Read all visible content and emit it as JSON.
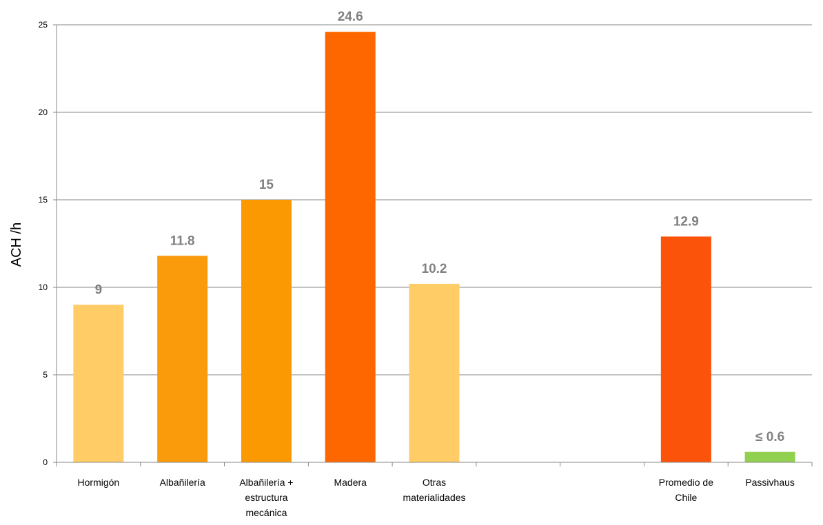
{
  "chart_data": {
    "type": "bar",
    "ylabel": "ACH /h",
    "ylim": [
      0,
      25
    ],
    "yticks": [
      "0",
      "5",
      "10",
      "15",
      "20",
      "25"
    ],
    "grid": true,
    "categories": [
      [
        "Hormigón"
      ],
      [
        "Albañilería"
      ],
      [
        "Albañilería +",
        "estructura",
        "mecánica"
      ],
      [
        "Madera"
      ],
      [
        "Otras",
        "materialidades"
      ],
      [
        ""
      ],
      [
        ""
      ],
      [
        "Promedio de",
        "Chile"
      ],
      [
        "Passivhaus"
      ]
    ],
    "values": [
      9,
      11.8,
      15,
      24.6,
      10.2,
      null,
      null,
      12.9,
      0.6
    ],
    "data_labels": [
      "9",
      "11.8",
      "15",
      "24.6",
      "10.2",
      "",
      "",
      "12.9",
      "≤ 0.6"
    ],
    "colors": [
      "#FFCC66",
      "#F99B0B",
      "#FB9903",
      "#FE6700",
      "#FFCC66",
      "",
      "",
      "#FB5309",
      "#92D050"
    ]
  }
}
